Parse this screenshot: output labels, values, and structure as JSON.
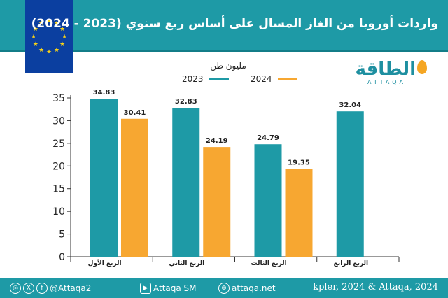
{
  "header": {
    "title": "واردات أوروبا من الغاز المسال على أساس ربع سنوي (2023 - 2024)"
  },
  "brand": {
    "name": "الطاقة",
    "sub": "ATTAQA"
  },
  "chart_data": {
    "type": "bar",
    "ylabel": "مليون طن",
    "categories": [
      "الربع الأول",
      "الربع الثاني",
      "الربع الثالث",
      "الربع الرابع"
    ],
    "series": [
      {
        "name": "2023",
        "color": "#1e9aa6",
        "values": [
          34.83,
          32.83,
          24.79,
          32.04
        ]
      },
      {
        "name": "2024",
        "color": "#f7a731",
        "values": [
          30.41,
          24.19,
          19.35,
          null
        ]
      }
    ],
    "ylim": [
      0,
      35
    ],
    "yticks": [
      0,
      5,
      10,
      15,
      20,
      25,
      30,
      35
    ],
    "grid": false,
    "legend": "top"
  },
  "footer": {
    "twitter": "@Attaqa2",
    "youtube": "Attaqa SM",
    "website": "attaqa.net",
    "source": "kpler, 2024 & Attaqa, 2024"
  }
}
